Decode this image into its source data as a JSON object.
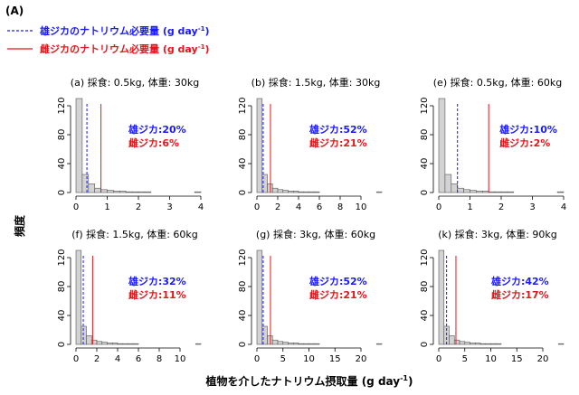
{
  "figure_label": "(A)",
  "legend": [
    {
      "label": "雄ジカのナトリウム必要量 (g day-1)",
      "text_main": "雄ジカのナトリウム必要量 (g day",
      "text_sup": "-1",
      "text_end": ")",
      "color": "#1a1aff",
      "style": "dashed"
    },
    {
      "label": "雌ジカのナトリウム必要量 (g day-1)",
      "text_main": "雌ジカのナトリウム必要量 (g day",
      "text_sup": "-1",
      "text_end": ")",
      "color": "#e8141c",
      "style": "solid"
    }
  ],
  "ylabel": "頻度",
  "xlabel_main": "植物を介したナトリウム摂取量 (g day",
  "xlabel_sup": "-1",
  "xlabel_end": ")",
  "colors": {
    "bar_fill": "#d3d3d3",
    "bar_stroke": "#555555",
    "male": "#1a1aff",
    "female": "#e8141c"
  },
  "chart_data": [
    {
      "type": "bar",
      "title": "(a) 採食: 0.5kg, 体重: 30kg",
      "xlim": [
        0,
        4
      ],
      "ylim": [
        0,
        120
      ],
      "xticks": [
        0,
        1,
        2,
        3,
        4
      ],
      "yticks": [
        0,
        40,
        80,
        120
      ],
      "bin_width": 0.2,
      "counts": [
        130,
        25,
        12,
        6,
        4,
        3,
        2,
        2,
        1,
        1,
        1,
        1,
        0,
        0,
        0,
        0,
        0,
        0,
        0,
        1
      ],
      "male_line": 0.35,
      "female_line": 0.8,
      "male_text": "雄ジカ:20%",
      "female_text": "雌ジカ:6%"
    },
    {
      "type": "bar",
      "title": "(b) 採食: 1.5kg, 体重: 30kg",
      "xlim": [
        0,
        12
      ],
      "ylim": [
        0,
        120
      ],
      "xticks": [
        0,
        2,
        4,
        6,
        8,
        10
      ],
      "yticks": [
        0,
        40,
        80,
        120
      ],
      "bin_width": 0.5,
      "counts": [
        130,
        25,
        12,
        6,
        4,
        3,
        2,
        2,
        1,
        1,
        1,
        1,
        0,
        0,
        0,
        0,
        0,
        0,
        0,
        0,
        0,
        0,
        0,
        1
      ],
      "male_line": 0.6,
      "female_line": 1.3,
      "male_text": "雄ジカ:52%",
      "female_text": "雌ジカ:21%"
    },
    {
      "type": "bar",
      "title": "(e) 採食: 0.5kg, 体重: 60kg",
      "xlim": [
        0,
        4
      ],
      "ylim": [
        0,
        120
      ],
      "xticks": [
        0,
        1,
        2,
        3,
        4
      ],
      "yticks": [
        0,
        40,
        80,
        120
      ],
      "bin_width": 0.2,
      "counts": [
        130,
        25,
        12,
        6,
        4,
        3,
        2,
        2,
        1,
        1,
        1,
        1,
        0,
        0,
        0,
        0,
        0,
        0,
        0,
        1
      ],
      "male_line": 0.6,
      "female_line": 1.6,
      "male_text": "雄ジカ:10%",
      "female_text": "雌ジカ:2%"
    },
    {
      "type": "bar",
      "title": "(f) 採食: 1.5kg, 体重: 60kg",
      "xlim": [
        0,
        12
      ],
      "ylim": [
        0,
        120
      ],
      "xticks": [
        0,
        2,
        4,
        6,
        8,
        10
      ],
      "yticks": [
        0,
        40,
        80,
        120
      ],
      "bin_width": 0.5,
      "counts": [
        130,
        25,
        12,
        6,
        4,
        3,
        2,
        2,
        1,
        1,
        1,
        1,
        0,
        0,
        0,
        0,
        0,
        0,
        0,
        0,
        0,
        0,
        0,
        1
      ],
      "male_line": 0.7,
      "female_line": 1.6,
      "male_text": "雄ジカ:32%",
      "female_text": "雌ジカ:11%"
    },
    {
      "type": "bar",
      "title": "(g) 採食: 3kg, 体重: 60kg",
      "xlim": [
        0,
        24
      ],
      "ylim": [
        0,
        120
      ],
      "xticks": [
        0,
        5,
        10,
        15,
        20
      ],
      "yticks": [
        0,
        40,
        80,
        120
      ],
      "bin_width": 1,
      "counts": [
        130,
        25,
        12,
        6,
        4,
        3,
        2,
        2,
        1,
        1,
        1,
        1,
        0,
        0,
        0,
        0,
        0,
        0,
        0,
        0,
        0,
        0,
        0,
        1
      ],
      "male_line": 1.2,
      "female_line": 2.6,
      "male_text": "雄ジカ:52%",
      "female_text": "雌ジカ:21%"
    },
    {
      "type": "bar",
      "title": "(k) 採食: 3kg, 体重: 90kg",
      "xlim": [
        0,
        24
      ],
      "ylim": [
        0,
        120
      ],
      "xticks": [
        0,
        5,
        10,
        15,
        20
      ],
      "yticks": [
        0,
        40,
        80,
        120
      ],
      "bin_width": 1,
      "counts": [
        130,
        25,
        12,
        6,
        4,
        3,
        2,
        2,
        1,
        1,
        1,
        1,
        0,
        0,
        0,
        0,
        0,
        0,
        0,
        0,
        0,
        0,
        0,
        1
      ],
      "male_line": 1.5,
      "female_line": 3.3,
      "male_text": "雄ジカ:42%",
      "female_text": "雌ジカ:17%"
    }
  ]
}
